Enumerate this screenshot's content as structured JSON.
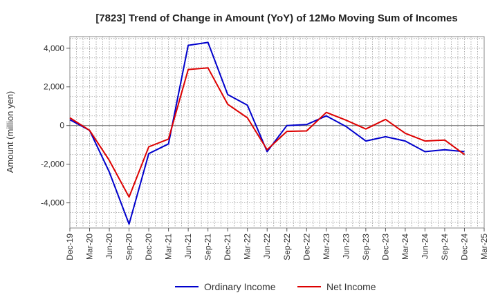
{
  "chart_data": {
    "type": "line",
    "title": "[7823]  Trend of Change in Amount (YoY) of 12Mo Moving Sum of Incomes",
    "xlabel": "",
    "ylabel": "Amount (million yen)",
    "ylim": [
      -5300,
      4600
    ],
    "yticks": [
      4000,
      2000,
      0,
      -2000,
      -4000
    ],
    "ytick_labels": [
      "4,000",
      "2,000",
      "0",
      "-2,000",
      "-4,000"
    ],
    "categories": [
      "Dec-19",
      "Mar-20",
      "Jun-20",
      "Sep-20",
      "Dec-20",
      "Mar-21",
      "Jun-21",
      "Sep-21",
      "Dec-21",
      "Mar-22",
      "Jun-22",
      "Sep-22",
      "Dec-22",
      "Mar-23",
      "Jun-23",
      "Sep-23",
      "Dec-23",
      "Mar-24",
      "Jun-24",
      "Sep-24",
      "Dec-24",
      "Mar-25"
    ],
    "grid": true,
    "legend_position": "bottom",
    "series": [
      {
        "name": "Ordinary Income",
        "color": "#0000cc",
        "values": [
          300,
          -250,
          -2400,
          -5100,
          -1450,
          -950,
          4150,
          4300,
          1600,
          1050,
          -1350,
          0,
          50,
          500,
          -50,
          -800,
          -580,
          -800,
          -1350,
          -1250,
          -1350,
          null
        ]
      },
      {
        "name": "Net Income",
        "color": "#dd0000",
        "values": [
          400,
          -250,
          -1800,
          -3700,
          -1100,
          -700,
          2900,
          2980,
          1100,
          400,
          -1250,
          -300,
          -280,
          680,
          280,
          -180,
          320,
          -400,
          -800,
          -750,
          -1500,
          null
        ]
      }
    ]
  }
}
